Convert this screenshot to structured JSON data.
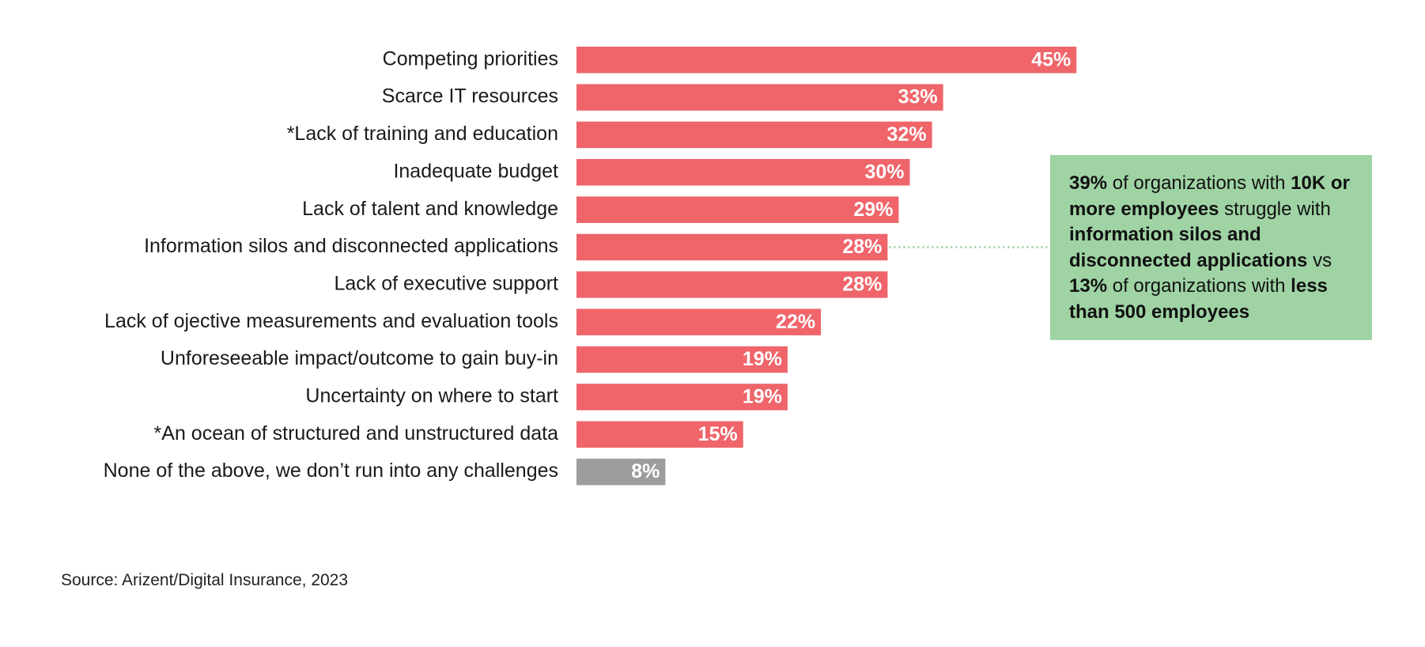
{
  "chart_data": {
    "type": "bar",
    "orientation": "horizontal",
    "categories": [
      "Competing priorities",
      "Scarce IT resources",
      "*Lack of training and education",
      "Inadequate budget",
      "Lack of talent and knowledge",
      "Information silos and disconnected applications",
      "Lack of executive support",
      "Lack of ojective measurements and evaluation tools",
      "Unforeseeable impact/outcome to gain buy-in",
      "Uncertainty on where to start",
      "*An ocean of structured and unstructured data",
      "None of the above, we don’t run into any challenges"
    ],
    "values": [
      45,
      33,
      32,
      30,
      29,
      28,
      28,
      22,
      19,
      19,
      15,
      8
    ],
    "value_labels": [
      "45%",
      "33%",
      "32%",
      "30%",
      "29%",
      "28%",
      "28%",
      "22%",
      "19%",
      "19%",
      "15%",
      "8%"
    ],
    "colors": [
      "#ef656a",
      "#ef656a",
      "#ef656a",
      "#ef656a",
      "#ef656a",
      "#ef656a",
      "#ef656a",
      "#ef656a",
      "#ef656a",
      "#ef656a",
      "#ef656a",
      "#9d9d9d"
    ],
    "annotation": [
      {
        "text": "39%",
        "bold": true
      },
      {
        "text": " of organizations with ",
        "bold": false
      },
      {
        "text": "10K or more employees",
        "bold": true
      },
      {
        "text": " struggle with ",
        "bold": false
      },
      {
        "text": "information silos and disconnected applications",
        "bold": true
      },
      {
        "text": " vs ",
        "bold": false
      },
      {
        "text": "13%",
        "bold": true
      },
      {
        "text": " of organizations with ",
        "bold": false
      },
      {
        "text": "less than 500 employees",
        "bold": true
      }
    ],
    "annotation_color": "#9fd3a4",
    "annotation_category": 5,
    "source": "Source: Arizent/Digital Insurance, 2023"
  }
}
